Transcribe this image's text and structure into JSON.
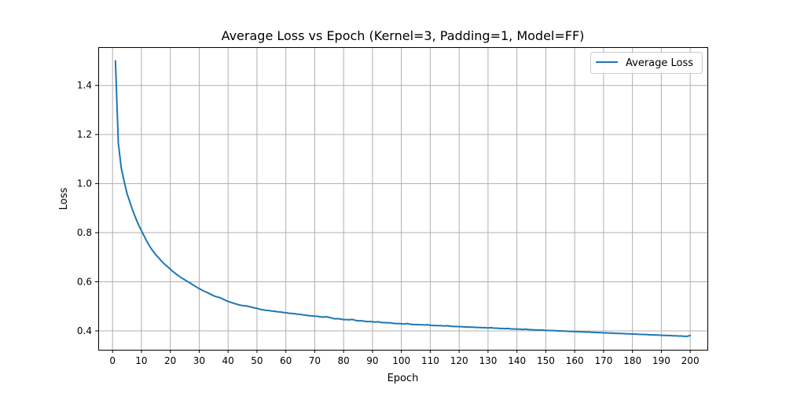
{
  "chart_data": {
    "type": "line",
    "title": "Average Loss vs Epoch (Kernel=3, Padding=1, Model=FF)",
    "xlabel": "Epoch",
    "ylabel": "Loss",
    "xlim": [
      -4.95,
      205.95
    ],
    "ylim": [
      0.323,
      1.556
    ],
    "grid": true,
    "legend_position": "top-right",
    "xticks": [
      0,
      10,
      20,
      30,
      40,
      50,
      60,
      70,
      80,
      90,
      100,
      110,
      120,
      130,
      140,
      150,
      160,
      170,
      180,
      190,
      200
    ],
    "yticks": [
      0.4,
      0.6,
      0.8,
      1.0,
      1.2,
      1.4
    ],
    "ytick_labels": [
      "0.4",
      "0.6",
      "0.8",
      "1.0",
      "1.2",
      "1.4"
    ],
    "series": [
      {
        "name": "Average Loss",
        "color": "#1f77b4",
        "x_start": 1,
        "x_step": 1,
        "values": [
          1.5,
          1.165,
          1.065,
          1.01,
          0.96,
          0.925,
          0.89,
          0.86,
          0.832,
          0.808,
          0.785,
          0.762,
          0.742,
          0.725,
          0.71,
          0.697,
          0.684,
          0.672,
          0.662,
          0.651,
          0.641,
          0.632,
          0.623,
          0.615,
          0.608,
          0.601,
          0.594,
          0.586,
          0.579,
          0.572,
          0.566,
          0.56,
          0.555,
          0.549,
          0.543,
          0.539,
          0.536,
          0.531,
          0.525,
          0.52,
          0.516,
          0.512,
          0.509,
          0.505,
          0.503,
          0.502,
          0.5,
          0.497,
          0.494,
          0.492,
          0.488,
          0.486,
          0.484,
          0.483,
          0.481,
          0.48,
          0.478,
          0.477,
          0.475,
          0.474,
          0.472,
          0.471,
          0.47,
          0.468,
          0.467,
          0.465,
          0.464,
          0.462,
          0.461,
          0.46,
          0.459,
          0.457,
          0.456,
          0.458,
          0.455,
          0.452,
          0.449,
          0.45,
          0.448,
          0.446,
          0.446,
          0.445,
          0.447,
          0.443,
          0.441,
          0.441,
          0.44,
          0.438,
          0.438,
          0.437,
          0.436,
          0.437,
          0.434,
          0.434,
          0.433,
          0.433,
          0.431,
          0.43,
          0.43,
          0.429,
          0.428,
          0.43,
          0.427,
          0.426,
          0.426,
          0.425,
          0.425,
          0.424,
          0.425,
          0.423,
          0.422,
          0.422,
          0.421,
          0.421,
          0.42,
          0.421,
          0.419,
          0.418,
          0.418,
          0.417,
          0.417,
          0.416,
          0.416,
          0.415,
          0.415,
          0.414,
          0.414,
          0.413,
          0.413,
          0.412,
          0.413,
          0.411,
          0.411,
          0.41,
          0.41,
          0.409,
          0.41,
          0.408,
          0.408,
          0.407,
          0.407,
          0.406,
          0.407,
          0.405,
          0.405,
          0.404,
          0.404,
          0.403,
          0.403,
          0.402,
          0.402,
          0.401,
          0.401,
          0.4,
          0.4,
          0.399,
          0.399,
          0.398,
          0.398,
          0.397,
          0.397,
          0.396,
          0.396,
          0.395,
          0.395,
          0.394,
          0.394,
          0.393,
          0.393,
          0.392,
          0.392,
          0.391,
          0.391,
          0.39,
          0.39,
          0.389,
          0.389,
          0.388,
          0.388,
          0.387,
          0.387,
          0.386,
          0.386,
          0.385,
          0.385,
          0.384,
          0.384,
          0.383,
          0.383,
          0.382,
          0.382,
          0.381,
          0.381,
          0.38,
          0.38,
          0.379,
          0.379,
          0.378,
          0.378,
          0.381
        ]
      }
    ]
  }
}
